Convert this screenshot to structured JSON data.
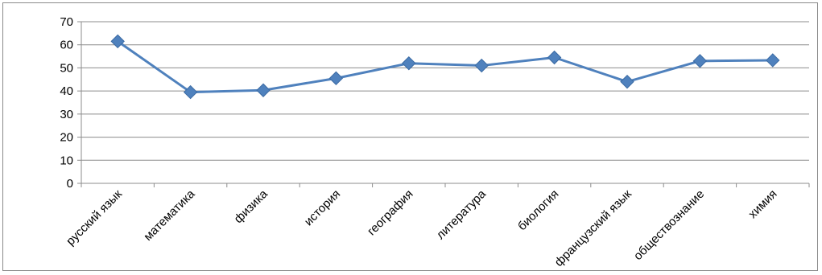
{
  "chart_data": {
    "type": "line",
    "title": "",
    "xlabel": "",
    "ylabel": "",
    "ylim": [
      0,
      70
    ],
    "yticks": [
      0,
      10,
      20,
      30,
      40,
      50,
      60,
      70
    ],
    "grid": true,
    "legend": "none",
    "categories": [
      "русский язык",
      "математика",
      "физика",
      "история",
      "география",
      "литература",
      "биология",
      "французский язык",
      "обществознание",
      "химия"
    ],
    "series": [
      {
        "color": "#4f81bd",
        "values": [
          61.5,
          39.5,
          40.3,
          45.5,
          52.0,
          51.0,
          54.5,
          44.0,
          53.0,
          53.3
        ]
      }
    ]
  }
}
